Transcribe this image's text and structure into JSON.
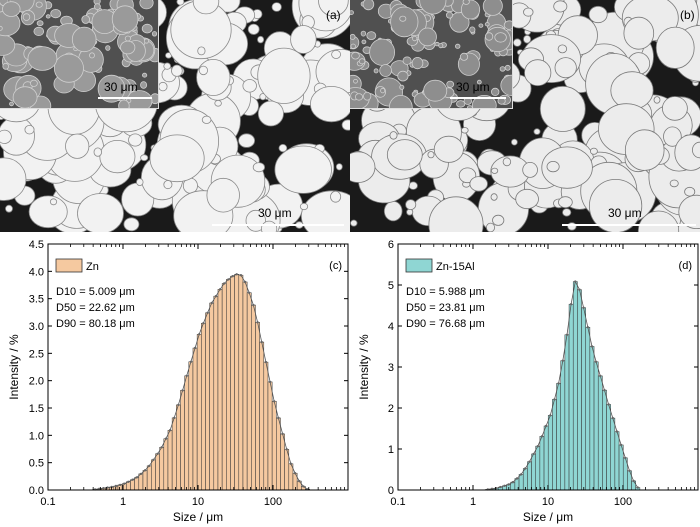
{
  "sem_images": [
    {
      "panel_label": "(a)",
      "scale_bar_label": "30 μm",
      "inset_scale_bar_label": "30 μm"
    },
    {
      "panel_label": "(b)",
      "scale_bar_label": "30 μm",
      "inset_scale_bar_label": "30 μm"
    }
  ],
  "chart_data": [
    {
      "type": "bar",
      "panel_label": "(c)",
      "legend": "Zn",
      "legend_position": "top-left",
      "color": "#f5c9a0",
      "annotations": [
        "D10 = 5.009 μm",
        "D50 = 22.62 μm",
        "D90 = 80.18 μm"
      ],
      "xlabel": "Size / μm",
      "ylabel": "Intensity / %",
      "xscale": "log",
      "xlim": [
        0.1,
        1000
      ],
      "ylim": [
        0,
        4.5
      ],
      "x_ticks": [
        "0.1",
        "1",
        "10",
        "100"
      ],
      "y_ticks": [
        "0.0",
        "0.5",
        "1.0",
        "1.5",
        "2.0",
        "2.5",
        "3.0",
        "3.5",
        "4.0",
        "4.5"
      ],
      "y_tick_values": [
        0,
        0.5,
        1.0,
        1.5,
        2.0,
        2.5,
        3.0,
        3.5,
        4.0,
        4.5
      ],
      "x_tick_values": [
        0.1,
        1,
        10,
        100
      ],
      "profile": [
        [
          0.35,
          0.0
        ],
        [
          0.5,
          0.03
        ],
        [
          0.7,
          0.06
        ],
        [
          1.0,
          0.12
        ],
        [
          1.4,
          0.22
        ],
        [
          2.0,
          0.4
        ],
        [
          3.0,
          0.75
        ],
        [
          4.0,
          1.1
        ],
        [
          5.0,
          1.5
        ],
        [
          7.0,
          2.2
        ],
        [
          10,
          2.9
        ],
        [
          14,
          3.4
        ],
        [
          20,
          3.75
        ],
        [
          25,
          3.88
        ],
        [
          30,
          3.95
        ],
        [
          35,
          3.93
        ],
        [
          40,
          3.8
        ],
        [
          50,
          3.45
        ],
        [
          60,
          3.0
        ],
        [
          70,
          2.55
        ],
        [
          85,
          2.0
        ],
        [
          100,
          1.55
        ],
        [
          130,
          0.95
        ],
        [
          160,
          0.5
        ],
        [
          200,
          0.2
        ],
        [
          240,
          0.06
        ],
        [
          280,
          0.0
        ]
      ]
    },
    {
      "type": "bar",
      "panel_label": "(d)",
      "legend": "Zn-15Al",
      "legend_position": "top-left",
      "color": "#8fd6d3",
      "annotations": [
        "D10 = 5.988 μm",
        "D50 = 23.81 μm",
        "D90 = 76.68 μm"
      ],
      "xlabel": "Size / μm",
      "ylabel": "Intensity / %",
      "xscale": "log",
      "xlim": [
        0.1,
        1000
      ],
      "ylim": [
        0,
        6
      ],
      "x_ticks": [
        "0.1",
        "1",
        "10",
        "100"
      ],
      "y_ticks": [
        "0",
        "1",
        "2",
        "3",
        "4",
        "5",
        "6"
      ],
      "y_tick_values": [
        0,
        1,
        2,
        3,
        4,
        5,
        6
      ],
      "x_tick_values": [
        0.1,
        1,
        10,
        100
      ],
      "profile": [
        [
          1.3,
          0.0
        ],
        [
          2.0,
          0.05
        ],
        [
          3.0,
          0.15
        ],
        [
          4.0,
          0.35
        ],
        [
          5.0,
          0.6
        ],
        [
          7.0,
          1.1
        ],
        [
          10,
          1.8
        ],
        [
          13,
          2.6
        ],
        [
          16,
          3.5
        ],
        [
          18,
          4.2
        ],
        [
          20,
          4.8
        ],
        [
          21,
          5.1
        ],
        [
          23,
          5.05
        ],
        [
          25,
          4.85
        ],
        [
          30,
          4.2
        ],
        [
          35,
          3.6
        ],
        [
          40,
          3.2
        ],
        [
          50,
          2.6
        ],
        [
          60,
          2.1
        ],
        [
          70,
          1.7
        ],
        [
          85,
          1.2
        ],
        [
          100,
          0.8
        ],
        [
          120,
          0.35
        ],
        [
          140,
          0.1
        ],
        [
          160,
          0.0
        ]
      ]
    }
  ]
}
